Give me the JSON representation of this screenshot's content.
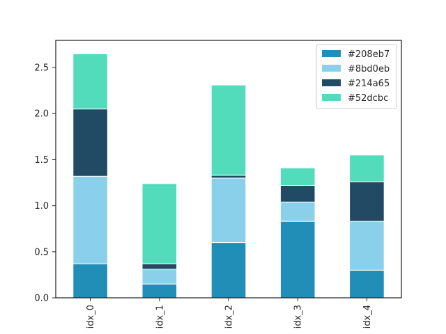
{
  "chart_data": {
    "type": "bar",
    "stacked": true,
    "categories": [
      "idx_0",
      "idx_1",
      "idx_2",
      "idx_3",
      "idx_4"
    ],
    "series": [
      {
        "name": "#208eb7",
        "color": "#208eb7",
        "values": [
          0.37,
          0.15,
          0.6,
          0.83,
          0.3
        ]
      },
      {
        "name": "#8bd0eb",
        "color": "#8bd0eb",
        "values": [
          0.95,
          0.16,
          0.7,
          0.21,
          0.53
        ]
      },
      {
        "name": "#214a65",
        "color": "#214a65",
        "values": [
          0.73,
          0.06,
          0.03,
          0.18,
          0.43
        ]
      },
      {
        "name": "#52dcbc",
        "color": "#52dcbc",
        "values": [
          0.6,
          0.87,
          0.98,
          0.19,
          0.29
        ]
      }
    ],
    "yticks": [
      "0.0",
      "0.5",
      "1.0",
      "1.5",
      "2.0",
      "2.5"
    ],
    "ylim": [
      0,
      2.795
    ],
    "title": "",
    "xlabel": "",
    "ylabel": "",
    "legend_position": "upper-right",
    "grid": false
  }
}
